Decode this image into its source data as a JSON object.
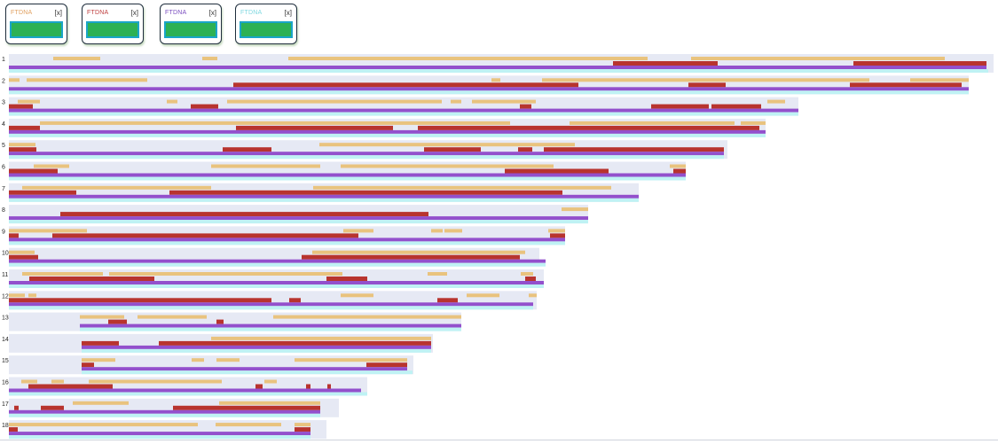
{
  "kits": [
    {
      "label": "FTDNA",
      "close": "[x]",
      "label_color": "#e0a060"
    },
    {
      "label": "FTDNA",
      "close": "[x]",
      "label_color": "#c04040"
    },
    {
      "label": "FTDNA",
      "close": "[x]",
      "label_color": "#7b4fc0"
    },
    {
      "label": "FTDNA",
      "close": "[x]",
      "label_color": "#7fd8e0"
    }
  ],
  "chart_data": {
    "type": "bar",
    "title": "",
    "xlabel": "",
    "ylabel": "",
    "colors": {
      "background": "#e6e9f4",
      "match_a": "#e9c37e",
      "match_b": "#b8342e",
      "match_c": "#9350cc",
      "match_d": "#bff2f4"
    },
    "chromosomes": [
      {
        "label": "1",
        "length": 1110,
        "a": [
          [
            50,
            103
          ],
          [
            218,
            235
          ],
          [
            315,
            720
          ],
          [
            769,
            1055
          ]
        ],
        "b": [
          [
            681,
            799
          ],
          [
            952,
            1102
          ]
        ],
        "c": [
          [
            0,
            1102
          ]
        ],
        "d": [
          [
            0,
            1104
          ]
        ]
      },
      {
        "label": "2",
        "length": 1082,
        "a": [
          [
            0,
            12
          ],
          [
            20,
            156
          ],
          [
            544,
            554
          ],
          [
            601,
            970
          ],
          [
            1016,
            1082
          ]
        ],
        "b": [
          [
            253,
            642
          ],
          [
            766,
            808
          ],
          [
            948,
            1074
          ]
        ],
        "c": [
          [
            0,
            1082
          ]
        ],
        "d": [
          [
            0,
            1082
          ]
        ]
      },
      {
        "label": "3",
        "length": 890,
        "a": [
          [
            10,
            35
          ],
          [
            178,
            190
          ],
          [
            246,
            488
          ],
          [
            498,
            510
          ],
          [
            522,
            594
          ],
          [
            855,
            875
          ]
        ],
        "b": [
          [
            0,
            27
          ],
          [
            205,
            236
          ],
          [
            576,
            589
          ],
          [
            724,
            789
          ],
          [
            792,
            848
          ]
        ],
        "c": [
          [
            0,
            890
          ]
        ],
        "d": [
          [
            0,
            890
          ]
        ]
      },
      {
        "label": "4",
        "length": 853,
        "a": [
          [
            35,
            565
          ],
          [
            632,
            818
          ],
          [
            825,
            853
          ]
        ],
        "b": [
          [
            0,
            35
          ],
          [
            256,
            433
          ],
          [
            461,
            846
          ]
        ],
        "c": [
          [
            0,
            853
          ]
        ],
        "d": [
          [
            0,
            853
          ]
        ]
      },
      {
        "label": "5",
        "length": 810,
        "a": [
          [
            0,
            30
          ],
          [
            350,
            638
          ]
        ],
        "b": [
          [
            0,
            31
          ],
          [
            241,
            296
          ],
          [
            468,
            532
          ],
          [
            574,
            590
          ],
          [
            603,
            806
          ]
        ],
        "c": [
          [
            0,
            806
          ]
        ],
        "d": [
          [
            0,
            806
          ]
        ]
      },
      {
        "label": "6",
        "length": 763,
        "a": [
          [
            28,
            68
          ],
          [
            228,
            351
          ],
          [
            374,
            614
          ],
          [
            745,
            763
          ]
        ],
        "b": [
          [
            0,
            55
          ],
          [
            559,
            676
          ],
          [
            749,
            763
          ]
        ],
        "c": [
          [
            0,
            763
          ]
        ],
        "d": [
          [
            0,
            763
          ]
        ]
      },
      {
        "label": "7",
        "length": 710,
        "a": [
          [
            15,
            228
          ],
          [
            343,
            679
          ]
        ],
        "b": [
          [
            0,
            76
          ],
          [
            181,
            624
          ]
        ],
        "c": [
          [
            0,
            710
          ]
        ],
        "d": [
          [
            0,
            710
          ]
        ]
      },
      {
        "label": "8",
        "length": 653,
        "a": [
          [
            623,
            653
          ]
        ],
        "b": [
          [
            58,
            473
          ]
        ],
        "c": [
          [
            0,
            653
          ]
        ],
        "d": [
          [
            0,
            653
          ]
        ]
      },
      {
        "label": "9",
        "length": 627,
        "a": [
          [
            0,
            88
          ],
          [
            377,
            411
          ],
          [
            476,
            489
          ],
          [
            491,
            511
          ],
          [
            608,
            627
          ]
        ],
        "b": [
          [
            0,
            11
          ],
          [
            49,
            394
          ],
          [
            610,
            627
          ]
        ],
        "c": [
          [
            0,
            627
          ]
        ],
        "d": [
          [
            0,
            627
          ]
        ]
      },
      {
        "label": "10",
        "length": 598,
        "a": [
          [
            0,
            29
          ],
          [
            342,
            582
          ]
        ],
        "b": [
          [
            0,
            33
          ],
          [
            330,
            576
          ]
        ],
        "c": [
          [
            0,
            605
          ]
        ],
        "d": [
          [
            0,
            605
          ]
        ]
      },
      {
        "label": "11",
        "length": 603,
        "a": [
          [
            15,
            106
          ],
          [
            113,
            376
          ],
          [
            472,
            494
          ],
          [
            577,
            591
          ]
        ],
        "b": [
          [
            23,
            164
          ],
          [
            358,
            404
          ],
          [
            582,
            594
          ]
        ],
        "c": [
          [
            0,
            603
          ]
        ],
        "d": [
          [
            0,
            603
          ]
        ]
      },
      {
        "label": "12",
        "length": 595,
        "a": [
          [
            0,
            18
          ],
          [
            22,
            31
          ],
          [
            374,
            411
          ],
          [
            516,
            553
          ],
          [
            586,
            595
          ]
        ],
        "b": [
          [
            0,
            296
          ],
          [
            316,
            329
          ],
          [
            483,
            506
          ]
        ],
        "c": [
          [
            0,
            591
          ]
        ],
        "d": [
          [
            0,
            591
          ]
        ]
      },
      {
        "label": "13",
        "length": 510,
        "a": [
          [
            80,
            130
          ],
          [
            145,
            223
          ],
          [
            298,
            510
          ]
        ],
        "b": [
          [
            112,
            133
          ],
          [
            234,
            242
          ]
        ],
        "c": [
          [
            80,
            510
          ]
        ],
        "d": [
          [
            80,
            510
          ]
        ]
      },
      {
        "label": "14",
        "length": 478,
        "a": [
          [
            228,
            476
          ]
        ],
        "b": [
          [
            82,
            124
          ],
          [
            169,
            476
          ]
        ],
        "c": [
          [
            82,
            476
          ]
        ],
        "d": [
          [
            82,
            476
          ]
        ]
      },
      {
        "label": "15",
        "length": 456,
        "a": [
          [
            82,
            120
          ],
          [
            206,
            220
          ],
          [
            234,
            260
          ],
          [
            322,
            449
          ]
        ],
        "b": [
          [
            82,
            96
          ],
          [
            403,
            449
          ]
        ],
        "c": [
          [
            82,
            449
          ]
        ],
        "d": [
          [
            82,
            455
          ]
        ]
      },
      {
        "label": "16",
        "length": 404,
        "a": [
          [
            14,
            32
          ],
          [
            48,
            62
          ],
          [
            90,
            240
          ],
          [
            288,
            302
          ]
        ],
        "b": [
          [
            22,
            117
          ],
          [
            278,
            286
          ],
          [
            335,
            340
          ],
          [
            359,
            363
          ]
        ],
        "c": [
          [
            0,
            397
          ]
        ],
        "d": [
          [
            0,
            404
          ]
        ]
      },
      {
        "label": "17",
        "length": 372,
        "a": [
          [
            72,
            135
          ],
          [
            237,
            351
          ]
        ],
        "b": [
          [
            6,
            11
          ],
          [
            36,
            62
          ],
          [
            185,
            351
          ]
        ],
        "c": [
          [
            0,
            351
          ]
        ],
        "d": [
          [
            0,
            351
          ]
        ]
      },
      {
        "label": "18",
        "length": 358,
        "a": [
          [
            0,
            213
          ],
          [
            233,
            307
          ],
          [
            322,
            340
          ]
        ],
        "b": [
          [
            0,
            10
          ],
          [
            322,
            340
          ]
        ],
        "c": [
          [
            0,
            340
          ]
        ],
        "d": [
          [
            0,
            340
          ]
        ]
      }
    ]
  }
}
